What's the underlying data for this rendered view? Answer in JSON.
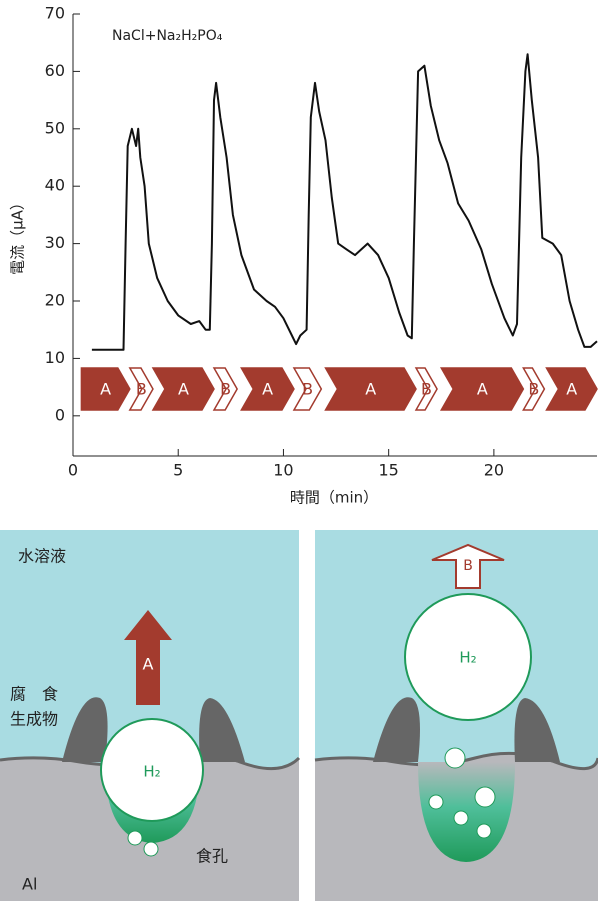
{
  "chart_data": {
    "type": "line",
    "annotation": "NaCl+Na₂H₂PO₄",
    "ylabel": "電流（μA）",
    "xlabel": "時間（min）",
    "color": "#111111",
    "x": [
      0.9,
      2.4,
      2.5,
      2.6,
      2.8,
      3.0,
      3.1,
      3.2,
      3.4,
      3.6,
      4.0,
      4.5,
      5.0,
      5.6,
      6.0,
      6.3,
      6.5,
      6.6,
      6.7,
      6.8,
      7.0,
      7.3,
      7.6,
      8.0,
      8.6,
      9.2,
      9.6,
      10.0,
      10.4,
      10.6,
      10.8,
      11.1,
      11.2,
      11.3,
      11.5,
      11.7,
      12.0,
      12.3,
      12.6,
      13.0,
      13.4,
      14.0,
      14.5,
      15.0,
      15.5,
      15.9,
      16.1,
      16.2,
      16.4,
      16.7,
      17.0,
      17.4,
      17.8,
      18.3,
      18.8,
      19.4,
      19.9,
      20.5,
      20.9,
      21.1,
      21.3,
      21.5,
      21.6,
      21.8,
      22.1,
      22.3,
      22.8,
      23.2,
      23.6,
      24.0,
      24.3,
      24.6,
      24.9
    ],
    "values": [
      11.5,
      11.5,
      30,
      47,
      50,
      47,
      50,
      45,
      40,
      30,
      24,
      20,
      17.5,
      16,
      16.5,
      15,
      15,
      30,
      55,
      58,
      52,
      45,
      35,
      28,
      22,
      20,
      19,
      17,
      14,
      12.5,
      14,
      15,
      35,
      52,
      58,
      53,
      48,
      38,
      30,
      29,
      28,
      30,
      28,
      24,
      18,
      14,
      13.5,
      30,
      60,
      61,
      54,
      48,
      44,
      37,
      34,
      29,
      23,
      17,
      14,
      16,
      45,
      60,
      63,
      55,
      45,
      31,
      30,
      28,
      20,
      15,
      12,
      12,
      13
    ],
    "phases": [
      {
        "label": "A",
        "start": 0.4,
        "end": 2.7
      },
      {
        "label": "B",
        "start": 2.7,
        "end": 3.8
      },
      {
        "label": "A",
        "start": 3.8,
        "end": 6.7
      },
      {
        "label": "B",
        "start": 6.7,
        "end": 7.8
      },
      {
        "label": "A",
        "start": 8.0,
        "end": 10.5
      },
      {
        "label": "B",
        "start": 10.5,
        "end": 11.8
      },
      {
        "label": "A",
        "start": 12.0,
        "end": 16.3
      },
      {
        "label": "B",
        "start": 16.3,
        "end": 17.3
      },
      {
        "label": "A",
        "start": 17.5,
        "end": 21.4
      },
      {
        "label": "B",
        "start": 21.4,
        "end": 22.4
      },
      {
        "label": "A",
        "start": 22.5,
        "end": 24.9
      }
    ],
    "xlim": [
      0,
      24.9
    ],
    "xticks": [
      0,
      5,
      10,
      15,
      20
    ],
    "ylim": [
      -7,
      70
    ],
    "yticks": [
      0,
      10,
      20,
      30,
      40,
      50,
      60,
      70
    ]
  },
  "diagram": {
    "left": {
      "solution": "水溶液",
      "product_1": "腐　食",
      "product_2": "生成物",
      "arrow": "A",
      "gas": "H₂",
      "pit": "食孔",
      "metal": "Al"
    },
    "right": {
      "arrow": "B",
      "gas": "H₂"
    }
  }
}
